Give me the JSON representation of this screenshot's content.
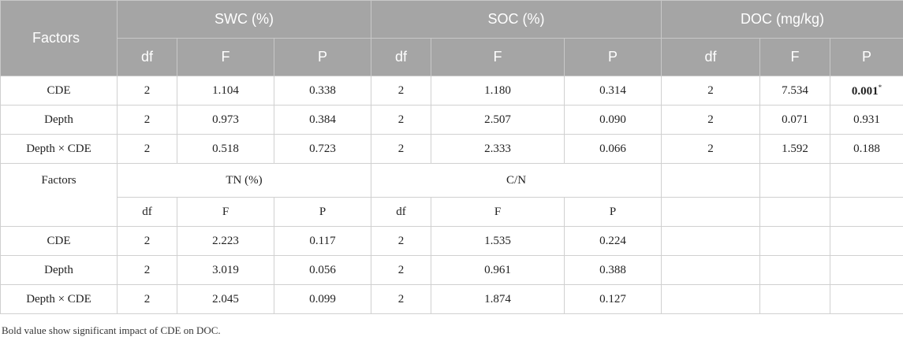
{
  "table1": {
    "header": [
      "Factors",
      "SWC (%)",
      "SOC (%)",
      "DOC (mg/kg)"
    ],
    "subheader": [
      "df",
      "F",
      "P",
      "df",
      "F",
      "P",
      "df",
      "F",
      "P"
    ],
    "rows": [
      [
        "CDE",
        "2",
        "1.104",
        "0.338",
        "2",
        "1.180",
        "0.314",
        "2",
        "7.534",
        {
          "text": "0.001",
          "mark": "*"
        }
      ],
      [
        "Depth",
        "2",
        "0.973",
        "0.384",
        "2",
        "2.507",
        "0.090",
        "2",
        "0.071",
        "0.931"
      ],
      [
        "Depth × CDE",
        "2",
        "0.518",
        "0.723",
        "2",
        "2.333",
        "0.066",
        "2",
        "1.592",
        "0.188"
      ]
    ]
  },
  "table2": {
    "header": [
      "Factors",
      "TN (%)",
      "C/N"
    ],
    "subheader": [
      "df",
      "F",
      "P",
      "df",
      "F",
      "P"
    ],
    "rows": [
      [
        "CDE",
        "2",
        "2.223",
        "0.117",
        "2",
        "1.535",
        "0.224"
      ],
      [
        "Depth",
        "2",
        "3.019",
        "0.056",
        "2",
        "0.961",
        "0.388"
      ],
      [
        "Depth × CDE",
        "2",
        "2.045",
        "0.099",
        "2",
        "1.874",
        "0.127"
      ]
    ]
  },
  "footnote": "Bold value show significant impact of CDE on DOC."
}
